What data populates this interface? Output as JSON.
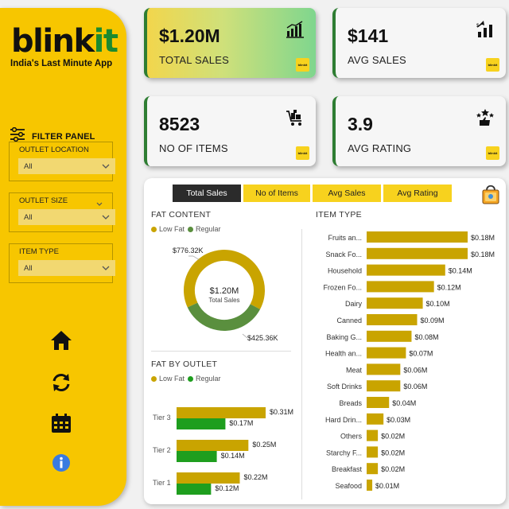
{
  "brand": {
    "logo_main": "blink",
    "logo_accent": "it",
    "tagline": "India's Last Minute App",
    "mini_logo": "blinkit"
  },
  "colors": {
    "yellow": "#f7c600",
    "olive": "#c9a400",
    "green": "#5a8f3e",
    "bright_green": "#1e9e1e",
    "dark": "#2b2b2b"
  },
  "sidebar": {
    "filter_title": "FILTER PANEL",
    "filters": [
      {
        "label": "OUTLET LOCATION",
        "value": "All"
      },
      {
        "label": "OUTLET SIZE",
        "value": "All"
      },
      {
        "label": "ITEM TYPE",
        "value": "All"
      }
    ],
    "icons": [
      "home-icon",
      "refresh-icon",
      "calendar-icon",
      "info-icon"
    ]
  },
  "kpis": [
    {
      "value": "$1.20M",
      "title": "TOTAL SALES",
      "icon": "bar-chart-icon"
    },
    {
      "value": "$141",
      "title": "AVG SALES",
      "icon": "growth-icon"
    },
    {
      "value": "8523",
      "title": "NO OF ITEMS",
      "icon": "cart-icon"
    },
    {
      "value": "3.9",
      "title": "AVG RATING",
      "icon": "rating-icon"
    }
  ],
  "tabs": [
    "Total Sales",
    "No of Items",
    "Avg Sales",
    "Avg Rating"
  ],
  "fat_content": {
    "title": "FAT CONTENT",
    "legend": [
      "Low Fat",
      "Regular"
    ],
    "center_value": "$1.20M",
    "center_label": "Total Sales",
    "label_low": "$776.32K",
    "label_regular": "$425.36K"
  },
  "fat_by_outlet": {
    "title": "FAT BY OUTLET",
    "legend": [
      "Low Fat",
      "Regular"
    ]
  },
  "item_type": {
    "title": "ITEM TYPE"
  },
  "chart_data": [
    {
      "type": "pie",
      "title": "FAT CONTENT",
      "categories": [
        "Low Fat",
        "Regular"
      ],
      "values": [
        776.32,
        425.36
      ],
      "unit": "K"
    },
    {
      "type": "bar",
      "title": "FAT BY OUTLET",
      "categories": [
        "Tier 3",
        "Tier 2",
        "Tier 1"
      ],
      "series": [
        {
          "name": "Low Fat",
          "values": [
            0.31,
            0.25,
            0.22
          ],
          "labels": [
            "$0.31M",
            "$0.25M",
            "$0.22M"
          ]
        },
        {
          "name": "Regular",
          "values": [
            0.17,
            0.14,
            0.12
          ],
          "labels": [
            "$0.17M",
            "$0.14M",
            "$0.12M"
          ]
        }
      ]
    },
    {
      "type": "bar",
      "title": "ITEM TYPE",
      "categories": [
        "Fruits an...",
        "Snack Fo...",
        "Household",
        "Frozen Fo...",
        "Dairy",
        "Canned",
        "Baking G...",
        "Health an...",
        "Meat",
        "Soft Drinks",
        "Breads",
        "Hard Drin...",
        "Others",
        "Starchy F...",
        "Breakfast",
        "Seafood"
      ],
      "values": [
        0.18,
        0.18,
        0.14,
        0.12,
        0.1,
        0.09,
        0.08,
        0.07,
        0.06,
        0.06,
        0.04,
        0.03,
        0.02,
        0.02,
        0.02,
        0.01
      ],
      "labels": [
        "$0.18M",
        "$0.18M",
        "$0.14M",
        "$0.12M",
        "$0.10M",
        "$0.09M",
        "$0.08M",
        "$0.07M",
        "$0.06M",
        "$0.06M",
        "$0.04M",
        "$0.03M",
        "$0.02M",
        "$0.02M",
        "$0.02M",
        "$0.01M"
      ]
    }
  ]
}
